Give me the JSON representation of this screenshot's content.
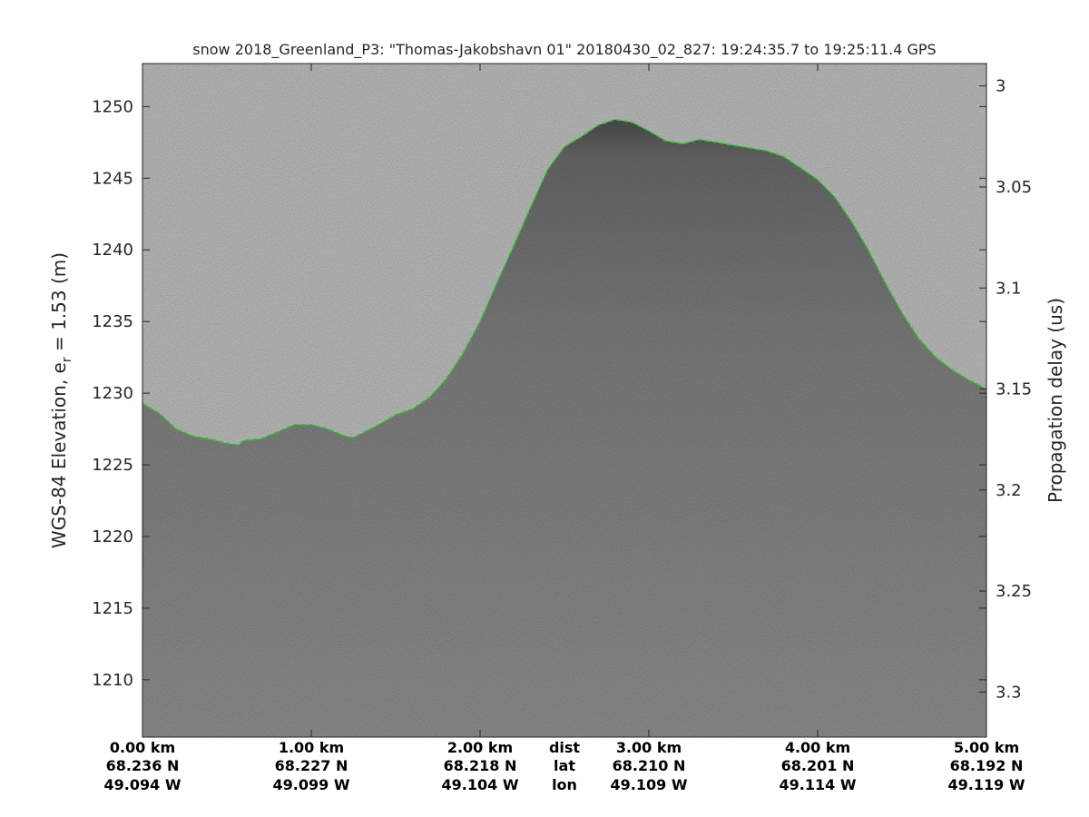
{
  "chart_data": {
    "type": "line",
    "title": "snow 2018_Greenland_P3: \"Thomas-Jakobshavn 01\"  20180430_02_827: 19:24:35.7 to 19:25:11.4 GPS",
    "ylabel_left_main": "WGS-84 Elevation, e",
    "ylabel_left_sub": "r",
    "ylabel_left_tail": " = 1.53 (m)",
    "ylabel_right": "Propagation delay (us)",
    "x_range_km": [
      0,
      5
    ],
    "ylim": [
      1206,
      1253
    ],
    "y_ticks": [
      1210,
      1215,
      1220,
      1225,
      1230,
      1235,
      1240,
      1245,
      1250
    ],
    "y2_range_us": [
      3.3223,
      2.9889
    ],
    "y2_ticks": [
      3,
      3.05,
      3.1,
      3.15,
      3.2,
      3.25,
      3.3
    ],
    "x_ticks": [
      {
        "x": 0.0,
        "dist": "0.00 km",
        "lat": "68.236 N",
        "lon": "49.094 W"
      },
      {
        "x": 1.0,
        "dist": "1.00 km",
        "lat": "68.227 N",
        "lon": "49.099 W"
      },
      {
        "x": 2.0,
        "dist": "2.00 km",
        "lat": "68.218 N",
        "lon": "49.104 W"
      },
      {
        "x": 3.0,
        "dist": "3.00 km",
        "lat": "68.210 N",
        "lon": "49.109 W"
      },
      {
        "x": 4.0,
        "dist": "4.00 km",
        "lat": "68.201 N",
        "lon": "49.114 W"
      },
      {
        "x": 5.0,
        "dist": "5.00 km",
        "lat": "68.192 N",
        "lon": "49.119 W"
      }
    ],
    "row_labels": [
      "dist",
      "lat",
      "lon"
    ],
    "series": [
      {
        "color": "#22cc22",
        "style": "dashed",
        "x": [
          0.0,
          0.1,
          0.2,
          0.3,
          0.4,
          0.5,
          0.57,
          0.6,
          0.7,
          0.8,
          0.9,
          1.0,
          1.1,
          1.2,
          1.25,
          1.3,
          1.4,
          1.5,
          1.6,
          1.7,
          1.8,
          1.9,
          2.0,
          2.1,
          2.2,
          2.3,
          2.4,
          2.5,
          2.6,
          2.7,
          2.8,
          2.9,
          3.0,
          3.1,
          3.2,
          3.3,
          3.4,
          3.5,
          3.6,
          3.7,
          3.8,
          3.9,
          4.0,
          4.1,
          4.2,
          4.3,
          4.4,
          4.5,
          4.6,
          4.7,
          4.8,
          4.9,
          5.0
        ],
        "y": [
          1229.3,
          1228.6,
          1227.5,
          1227.0,
          1226.8,
          1226.5,
          1226.4,
          1226.7,
          1226.8,
          1227.3,
          1227.8,
          1227.8,
          1227.5,
          1227.0,
          1226.9,
          1227.2,
          1227.8,
          1228.5,
          1228.9,
          1229.7,
          1231.0,
          1232.8,
          1235.0,
          1237.7,
          1240.3,
          1243.0,
          1245.6,
          1247.2,
          1247.9,
          1248.7,
          1249.1,
          1248.9,
          1248.3,
          1247.6,
          1247.4,
          1247.7,
          1247.5,
          1247.3,
          1247.1,
          1246.9,
          1246.5,
          1245.7,
          1244.9,
          1243.7,
          1242.0,
          1240.0,
          1237.7,
          1235.6,
          1233.8,
          1232.5,
          1231.6,
          1230.9,
          1230.3
        ]
      }
    ]
  }
}
